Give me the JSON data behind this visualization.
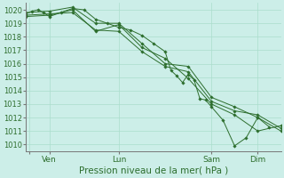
{
  "title": "",
  "xlabel": "Pression niveau de la mer( hPa )",
  "ylim": [
    1009.5,
    1020.5
  ],
  "yticks": [
    1010,
    1011,
    1012,
    1013,
    1014,
    1015,
    1016,
    1017,
    1018,
    1019,
    1020
  ],
  "bg_color": "#cceee8",
  "grid_color": "#aaddcc",
  "line_color": "#2d6e2d",
  "marker_color": "#2d6e2d",
  "x_tick_positions": [
    0.12,
    1.0,
    4.0,
    8.0,
    10.0
  ],
  "x_tick_labels": [
    "",
    "Ven",
    "Lun",
    "Sam",
    "Dim"
  ],
  "x_max": 11.0,
  "lines": [
    [
      0.0,
      1019.7,
      0.25,
      1019.9,
      0.5,
      1020.0,
      0.75,
      1019.8,
      1.0,
      1019.5,
      1.5,
      1019.8,
      2.0,
      1020.1,
      2.5,
      1020.0,
      3.0,
      1019.3,
      3.5,
      1019.0,
      4.0,
      1018.7,
      4.5,
      1018.5,
      5.0,
      1018.1,
      5.5,
      1017.5,
      6.0,
      1016.9,
      6.25,
      1015.5,
      6.5,
      1015.1,
      6.75,
      1014.6,
      7.0,
      1015.2,
      7.25,
      1014.8,
      7.5,
      1013.4,
      7.75,
      1013.3,
      8.0,
      1012.8,
      8.5,
      1011.8,
      9.0,
      1009.9,
      9.5,
      1010.5,
      10.0,
      1012.0,
      10.5,
      1011.3
    ],
    [
      0.0,
      1019.5,
      1.0,
      1019.6,
      2.0,
      1020.0,
      3.0,
      1018.4,
      4.0,
      1018.9,
      5.0,
      1017.2,
      6.0,
      1016.4,
      7.0,
      1014.9,
      8.0,
      1013.0,
      9.0,
      1012.2,
      10.0,
      1011.0,
      11.0,
      1011.4
    ],
    [
      0.0,
      1019.6,
      1.0,
      1019.7,
      2.0,
      1019.8,
      3.0,
      1018.5,
      4.0,
      1018.4,
      5.0,
      1016.9,
      6.0,
      1015.8,
      7.0,
      1015.4,
      8.0,
      1013.2,
      9.0,
      1012.5,
      10.0,
      1012.2,
      11.0,
      1011.2
    ],
    [
      0.0,
      1019.8,
      1.0,
      1019.9,
      2.0,
      1020.2,
      3.0,
      1019.0,
      4.0,
      1019.0,
      5.0,
      1017.5,
      6.0,
      1016.0,
      7.0,
      1015.8,
      8.0,
      1013.5,
      9.0,
      1012.8,
      10.0,
      1012.0,
      11.0,
      1011.0
    ]
  ]
}
